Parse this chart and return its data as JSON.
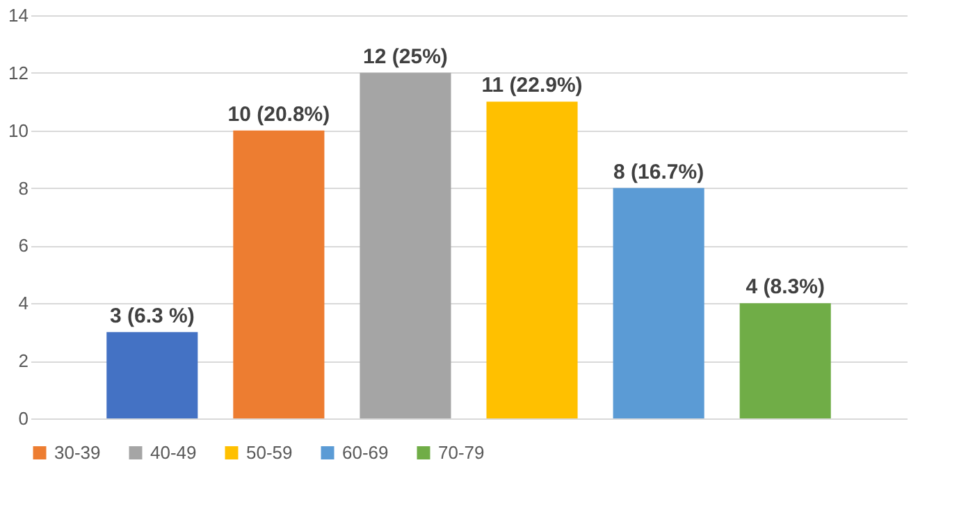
{
  "chart_data": {
    "type": "bar",
    "categories": [
      null,
      null,
      null,
      null,
      null,
      null
    ],
    "series": [
      {
        "color": "#4472c4",
        "values": [
          3,
          null,
          null,
          null,
          null,
          null
        ],
        "value_labels": [
          "3 (6.3 %)",
          null,
          null,
          null,
          null,
          null
        ]
      },
      {
        "name": "30-39",
        "color": "#ed7d31",
        "values": [
          null,
          10,
          null,
          null,
          null,
          null
        ],
        "value_labels": [
          null,
          "10 (20.8%)",
          null,
          null,
          null,
          null
        ]
      },
      {
        "name": "40-49",
        "color": "#a5a5a5",
        "values": [
          null,
          null,
          12,
          null,
          null,
          null
        ],
        "value_labels": [
          null,
          null,
          "12 (25%)",
          null,
          null,
          null
        ]
      },
      {
        "name": "50-59",
        "color": "#ffc000",
        "values": [
          null,
          null,
          null,
          11,
          null,
          null
        ],
        "value_labels": [
          null,
          null,
          null,
          "11 (22.9%)",
          null,
          null
        ]
      },
      {
        "name": "60-69",
        "color": "#5b9bd5",
        "values": [
          null,
          null,
          null,
          null,
          8,
          null
        ],
        "value_labels": [
          null,
          null,
          null,
          null,
          "8 (16.7%)",
          null
        ]
      },
      {
        "name": "70-79",
        "color": "#70ad47",
        "values": [
          null,
          null,
          null,
          null,
          null,
          4
        ],
        "value_labels": [
          null,
          null,
          null,
          null,
          null,
          "4 (8.3%)"
        ]
      }
    ],
    "ylim": [
      0,
      14
    ],
    "yticks": [
      0,
      2,
      4,
      6,
      8,
      10,
      12,
      14
    ],
    "grid": "y",
    "legend": "bottom",
    "tick_labels": "y"
  }
}
